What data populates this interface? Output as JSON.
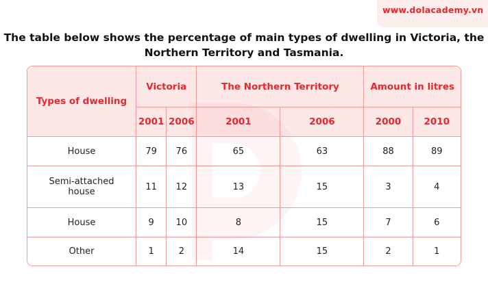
{
  "brand": {
    "url": "www.dolacademy.vn",
    "accent": "#e8262e"
  },
  "title": "The table below shows the percentage of main types of dwelling in Victoria, the Northern Territory and Tasmania.",
  "table": {
    "row_header": "Types of dwelling",
    "groups": [
      "Victoria",
      "The Northern Territory",
      "Amount in litres"
    ],
    "years": [
      "2001",
      "2006",
      "2001",
      "2006",
      "2000",
      "2010"
    ],
    "rows": [
      {
        "label": "House",
        "values": [
          "79",
          "76",
          "65",
          "63",
          "88",
          "89"
        ]
      },
      {
        "label": "Semi-attached house",
        "values": [
          "11",
          "12",
          "13",
          "15",
          "3",
          "4"
        ]
      },
      {
        "label": "House",
        "values": [
          "9",
          "10",
          "8",
          "15",
          "7",
          "6"
        ]
      },
      {
        "label": "Other",
        "values": [
          "1",
          "2",
          "14",
          "15",
          "2",
          "1"
        ]
      }
    ]
  }
}
